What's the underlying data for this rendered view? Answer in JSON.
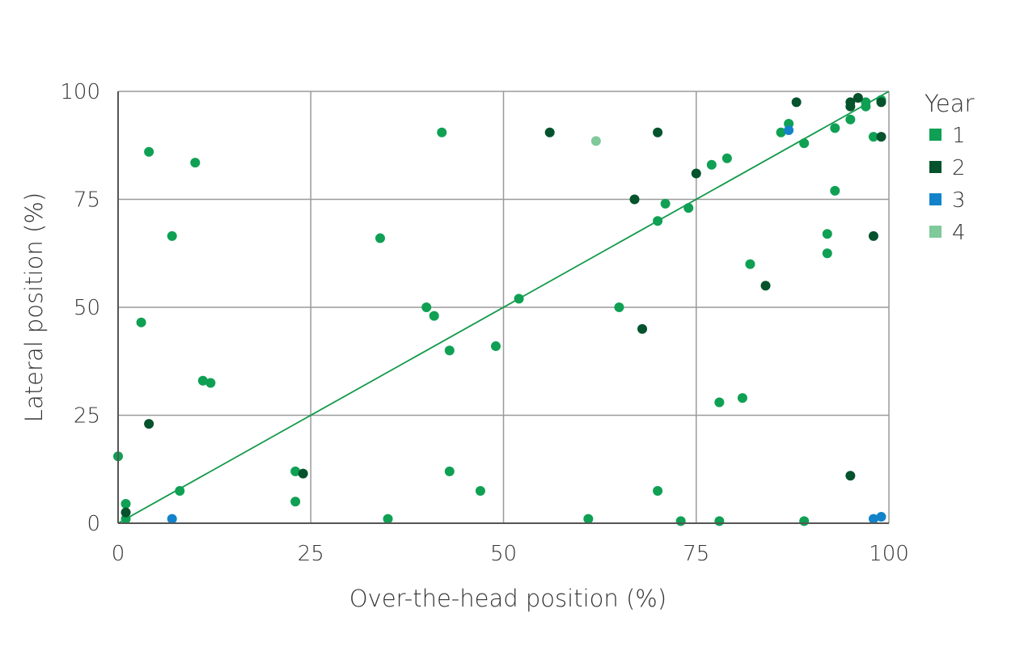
{
  "chart_data": {
    "type": "scatter",
    "xlabel": "Over-the-head position (%)",
    "ylabel": "Lateral position (%)",
    "xlim": [
      0,
      100
    ],
    "ylim": [
      0,
      100
    ],
    "x_ticks": [
      0,
      25,
      50,
      75,
      100
    ],
    "y_ticks": [
      0,
      25,
      50,
      75,
      100
    ],
    "x_tick_labels": [
      "0",
      "25",
      "50",
      "75",
      "100"
    ],
    "y_tick_labels": [
      "0",
      "25",
      "50",
      "75",
      "100"
    ],
    "grid": true,
    "legend": {
      "title": "Year",
      "placement": "right"
    },
    "reference_line": {
      "type": "identity",
      "from": [
        0,
        0
      ],
      "to": [
        100,
        100
      ],
      "color": "#12994a"
    },
    "series": [
      {
        "name": "1",
        "color": "#0fa054",
        "points": [
          [
            0,
            15.5
          ],
          [
            1,
            4.5
          ],
          [
            1,
            1
          ],
          [
            3,
            46.5
          ],
          [
            4,
            86
          ],
          [
            7,
            66.5
          ],
          [
            8,
            7.5
          ],
          [
            10,
            83.5
          ],
          [
            11,
            33
          ],
          [
            12,
            32.5
          ],
          [
            23,
            12
          ],
          [
            23,
            5
          ],
          [
            34,
            66
          ],
          [
            35,
            1
          ],
          [
            40,
            50
          ],
          [
            41,
            48
          ],
          [
            42,
            90.5
          ],
          [
            43,
            40
          ],
          [
            43,
            12
          ],
          [
            47,
            7.5
          ],
          [
            49,
            41
          ],
          [
            52,
            52
          ],
          [
            61,
            1
          ],
          [
            65,
            50
          ],
          [
            70,
            7.5
          ],
          [
            70,
            70
          ],
          [
            71,
            74
          ],
          [
            73,
            0.5
          ],
          [
            74,
            73
          ],
          [
            77,
            83
          ],
          [
            78,
            28
          ],
          [
            78,
            0.5
          ],
          [
            79,
            84.5
          ],
          [
            81,
            29
          ],
          [
            82,
            60
          ],
          [
            86,
            90.5
          ],
          [
            87,
            92.5
          ],
          [
            89,
            88
          ],
          [
            89,
            0.5
          ],
          [
            92,
            67
          ],
          [
            92,
            62.5
          ],
          [
            93,
            91.5
          ],
          [
            93,
            77
          ],
          [
            95,
            93.5
          ],
          [
            97,
            97.5
          ],
          [
            97,
            96.5
          ],
          [
            98,
            89.5
          ],
          [
            99,
            98
          ]
        ]
      },
      {
        "name": "2",
        "color": "#04532c",
        "points": [
          [
            1,
            2.5
          ],
          [
            4,
            23
          ],
          [
            24,
            11.5
          ],
          [
            56,
            90.5
          ],
          [
            67,
            75
          ],
          [
            68,
            45
          ],
          [
            70,
            90.5
          ],
          [
            75,
            81
          ],
          [
            84,
            55
          ],
          [
            88,
            97.5
          ],
          [
            95,
            97.5
          ],
          [
            95,
            96.5
          ],
          [
            95,
            11
          ],
          [
            96,
            98.5
          ],
          [
            98,
            66.5
          ],
          [
            99,
            97.5
          ],
          [
            99,
            89.5
          ]
        ]
      },
      {
        "name": "3",
        "color": "#1283c9",
        "points": [
          [
            7,
            1
          ],
          [
            87,
            91
          ],
          [
            98,
            1
          ],
          [
            99,
            1.5
          ]
        ]
      },
      {
        "name": "4",
        "color": "#7fc99a",
        "points": [
          [
            62,
            88.5
          ]
        ]
      }
    ]
  }
}
